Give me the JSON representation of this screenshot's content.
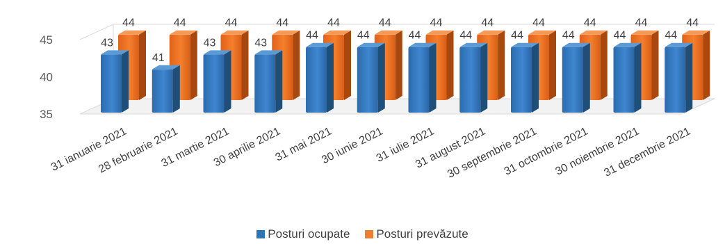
{
  "chart_data": {
    "type": "bar",
    "style": "3d-clustered-column",
    "categories": [
      "31 ianuarie 2021",
      "28 februarie 2021",
      "31 martie 2021",
      "30 aprilie 2021",
      "31 mai 2021",
      "30 iunie 2021",
      "31 iulie 2021",
      "31 august 2021",
      "30 septembrie 2021",
      "31 octombrie 2021",
      "30 noiembrie 2021",
      "31 decembrie 2021"
    ],
    "series": [
      {
        "name": "Posturi ocupate",
        "color": "#2E75B6",
        "values": [
          43,
          41,
          43,
          43,
          44,
          44,
          44,
          44,
          44,
          44,
          44,
          44
        ]
      },
      {
        "name": "Posturi prevăzute",
        "color": "#ED7D31",
        "values": [
          44,
          44,
          44,
          44,
          44,
          44,
          44,
          44,
          44,
          44,
          44,
          44
        ]
      }
    ],
    "yticks": [
      "35",
      "40",
      "45"
    ],
    "ylim": [
      35,
      45
    ],
    "legend_position": "bottom",
    "grid": false
  }
}
